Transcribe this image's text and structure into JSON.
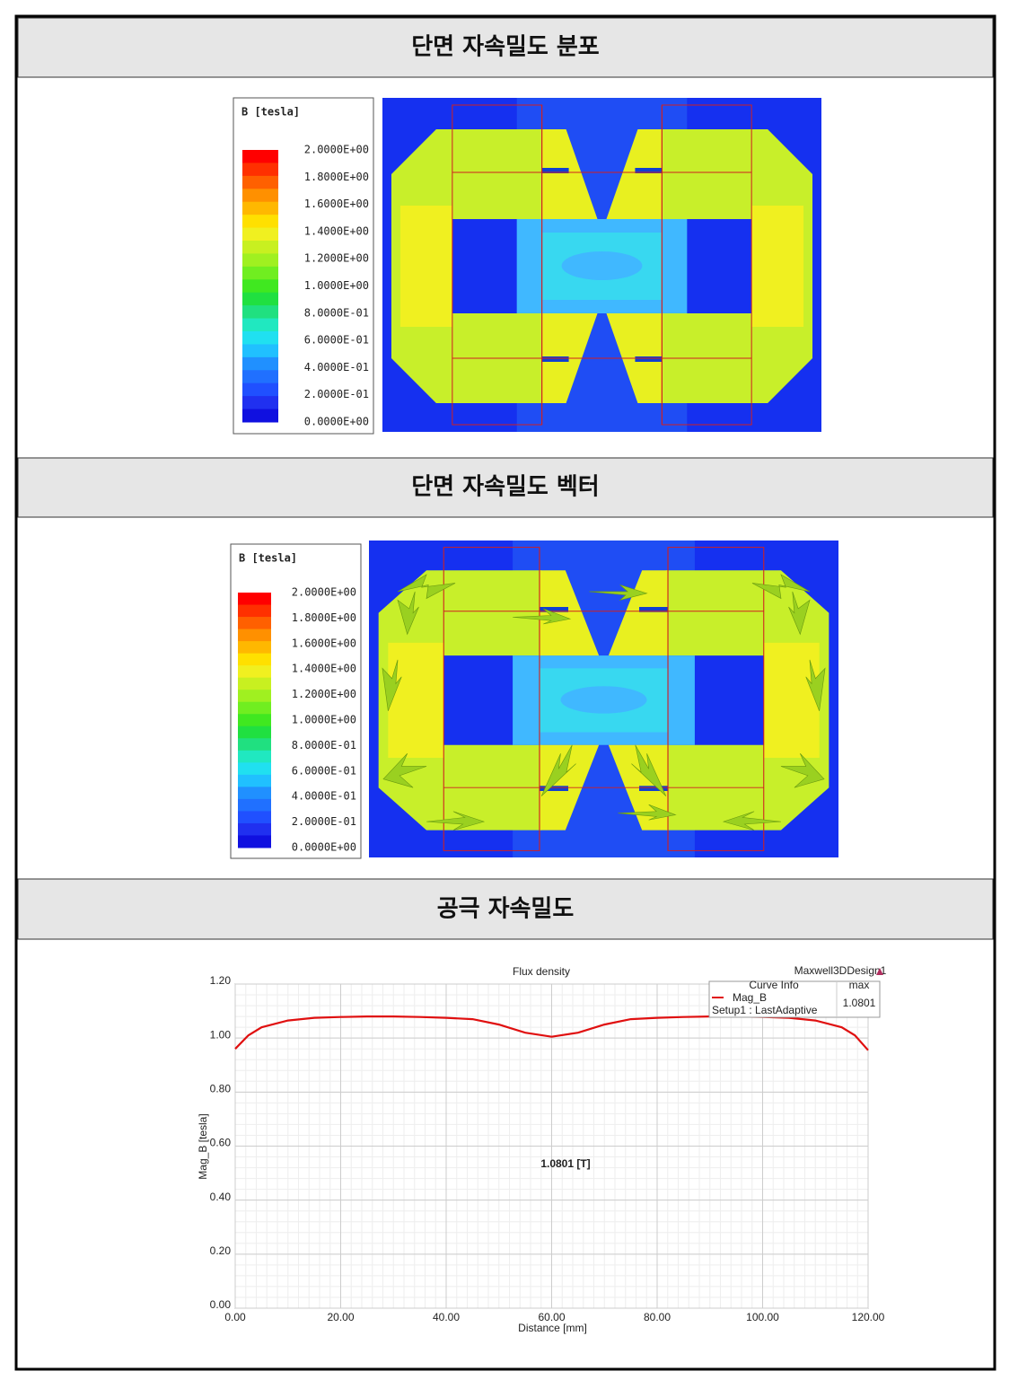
{
  "sections": [
    {
      "title": "단면 자속밀도 분포",
      "legend": {
        "title": "B [tesla]",
        "labels": [
          "2.0000E+00",
          "1.8000E+00",
          "1.6000E+00",
          "1.4000E+00",
          "1.2000E+00",
          "1.0000E+00",
          "8.0000E-01",
          "6.0000E-01",
          "4.0000E-01",
          "2.0000E-01",
          "0.0000E+00"
        ]
      }
    },
    {
      "title": "단면 자속밀도 벡터",
      "legend": {
        "title": "B [tesla]",
        "labels": [
          "2.0000E+00",
          "1.8000E+00",
          "1.6000E+00",
          "1.4000E+00",
          "1.2000E+00",
          "1.0000E+00",
          "8.0000E-01",
          "6.0000E-01",
          "4.0000E-01",
          "2.0000E-01",
          "0.0000E+00"
        ]
      }
    },
    {
      "title": "공극 자속밀도"
    }
  ],
  "chart_data": {
    "type": "line",
    "title": "Flux density",
    "watermark": "Maxwell3DDesign1",
    "x_label": "Distance [mm]",
    "y_label": "Mag_B [tesla]",
    "x": [
      0,
      2.5,
      5,
      10,
      15,
      20,
      25,
      30,
      35,
      40,
      45,
      50,
      55,
      60,
      65,
      70,
      75,
      80,
      85,
      90,
      95,
      100,
      105,
      110,
      115,
      117.5,
      120
    ],
    "series": [
      {
        "name": "Mag_B",
        "color": "#e01010",
        "values": [
          0.96,
          1.01,
          1.04,
          1.065,
          1.075,
          1.078,
          1.08,
          1.08,
          1.078,
          1.075,
          1.07,
          1.05,
          1.02,
          1.005,
          1.02,
          1.05,
          1.07,
          1.075,
          1.078,
          1.08,
          1.08,
          1.078,
          1.075,
          1.065,
          1.04,
          1.01,
          0.955
        ]
      }
    ],
    "xlim": [
      0,
      120
    ],
    "ylim": [
      0,
      1.2
    ],
    "xticks": [
      {
        "value": 0,
        "label": "0.00"
      },
      {
        "value": 20,
        "label": "20.00"
      },
      {
        "value": 40,
        "label": "40.00"
      },
      {
        "value": 60,
        "label": "60.00"
      },
      {
        "value": 80,
        "label": "80.00"
      },
      {
        "value": 100,
        "label": "100.00"
      },
      {
        "value": 120,
        "label": "120.00"
      }
    ],
    "yticks": [
      {
        "value": 0,
        "label": "0.00"
      },
      {
        "value": 0.2,
        "label": "0.20"
      },
      {
        "value": 0.4,
        "label": "0.40"
      },
      {
        "value": 0.6,
        "label": "0.60"
      },
      {
        "value": 0.8,
        "label": "0.80"
      },
      {
        "value": 1.0,
        "label": "1.00"
      },
      {
        "value": 1.2,
        "label": "1.20"
      }
    ],
    "grid": true,
    "legend": {
      "header": "Curve Info",
      "max_header": "max",
      "setup": "Setup1 : LastAdaptive",
      "max": 1.0801
    },
    "annotation": "1.0801 [T]"
  }
}
